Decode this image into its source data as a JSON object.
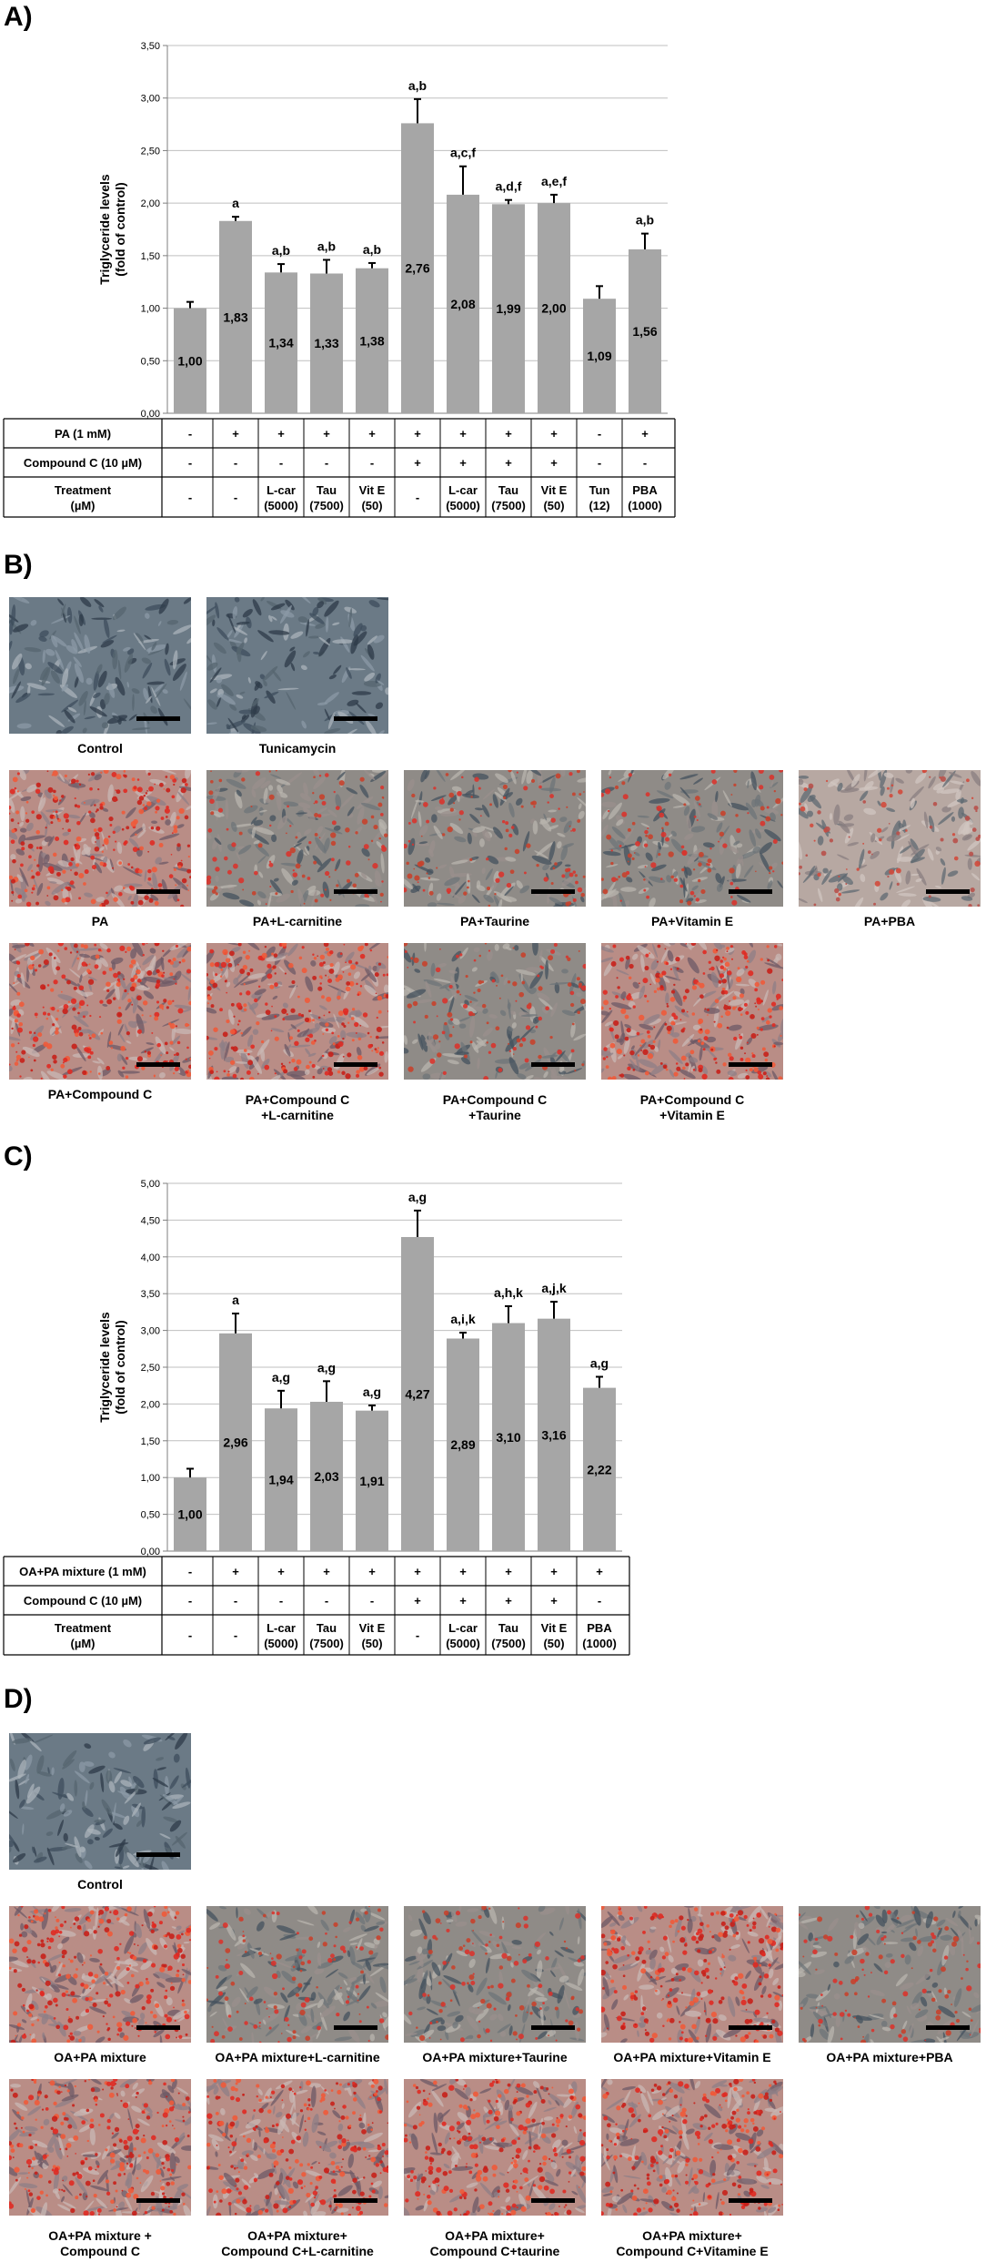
{
  "panels": {
    "A": "A)",
    "B": "B)",
    "C": "C)",
    "D": "D)"
  },
  "chart_data": [
    {
      "type": "bar",
      "panel": "A)",
      "ylabel_lines": [
        "Triglyceride levels",
        "(fold of control)"
      ],
      "ylim": [
        0,
        3.5
      ],
      "y_ticks": [
        "0,00",
        "0,50",
        "1,00",
        "1,50",
        "2,00",
        "2,50",
        "3,00",
        "3,50"
      ],
      "values": [
        1.0,
        1.83,
        1.34,
        1.33,
        1.38,
        2.76,
        2.08,
        1.99,
        2.0,
        1.09,
        1.56
      ],
      "errors": [
        0.06,
        0.04,
        0.08,
        0.13,
        0.05,
        0.23,
        0.27,
        0.04,
        0.08,
        0.12,
        0.15
      ],
      "value_labels": [
        "1,00",
        "1,83",
        "1,34",
        "1,33",
        "1,38",
        "2,76",
        "2,08",
        "1,99",
        "2,00",
        "1,09",
        "1,56"
      ],
      "sig_labels": [
        "",
        "a",
        "a,b",
        "a,b",
        "a,b",
        "a,b",
        "a,c,f",
        "a,d,f",
        "a,e,f",
        "",
        "a,b"
      ],
      "bar_color": "#a6a6a6",
      "table": [
        {
          "label": [
            "PA (1 mM)"
          ],
          "cells": [
            [
              "-"
            ],
            [
              "+"
            ],
            [
              "+"
            ],
            [
              "+"
            ],
            [
              "+"
            ],
            [
              "+"
            ],
            [
              "+"
            ],
            [
              "+"
            ],
            [
              "+"
            ],
            [
              "-"
            ],
            [
              "+"
            ]
          ]
        },
        {
          "label": [
            "Compound C (10 µM)"
          ],
          "cells": [
            [
              "-"
            ],
            [
              "-"
            ],
            [
              "-"
            ],
            [
              "-"
            ],
            [
              "-"
            ],
            [
              "+"
            ],
            [
              "+"
            ],
            [
              "+"
            ],
            [
              "+"
            ],
            [
              "-"
            ],
            [
              "-"
            ]
          ]
        },
        {
          "label": [
            "Treatment",
            "(µM)"
          ],
          "cells": [
            [
              "-"
            ],
            [
              "-"
            ],
            [
              "L-car",
              "(5000)"
            ],
            [
              "Tau",
              "(7500)"
            ],
            [
              "Vit E",
              "(50)"
            ],
            [
              "-"
            ],
            [
              "L-car",
              "(5000)"
            ],
            [
              "Tau",
              "(7500)"
            ],
            [
              "Vit E",
              "(50)"
            ],
            [
              "Tun",
              "(12)"
            ],
            [
              "PBA",
              "(1000)"
            ]
          ]
        }
      ]
    },
    {
      "type": "bar",
      "panel": "C)",
      "ylabel_lines": [
        "Triglyceride levels",
        "(fold of control)"
      ],
      "ylim": [
        0,
        5.0
      ],
      "y_ticks": [
        "0,00",
        "0,50",
        "1,00",
        "1,50",
        "2,00",
        "2,50",
        "3,00",
        "3,50",
        "4,00",
        "4,50",
        "5,00"
      ],
      "values": [
        1.0,
        2.96,
        1.94,
        2.03,
        1.91,
        4.27,
        2.89,
        3.1,
        3.16,
        2.22
      ],
      "errors": [
        0.12,
        0.27,
        0.24,
        0.28,
        0.07,
        0.36,
        0.08,
        0.23,
        0.23,
        0.15
      ],
      "value_labels": [
        "1,00",
        "2,96",
        "1,94",
        "2,03",
        "1,91",
        "4,27",
        "2,89",
        "3,10",
        "3,16",
        "2,22"
      ],
      "sig_labels": [
        "",
        "a",
        "a,g",
        "a,g",
        "a,g",
        "a,g",
        "a,i,k",
        "a,h,k",
        "a,j,k",
        "a,g"
      ],
      "bar_color": "#a6a6a6",
      "table": [
        {
          "label": [
            "OA+PA mixture (1 mM)"
          ],
          "cells": [
            [
              "-"
            ],
            [
              "+"
            ],
            [
              "+"
            ],
            [
              "+"
            ],
            [
              "+"
            ],
            [
              "+"
            ],
            [
              "+"
            ],
            [
              "+"
            ],
            [
              "+"
            ],
            [
              "+"
            ]
          ]
        },
        {
          "label": [
            "Compound C (10 µM)"
          ],
          "cells": [
            [
              "-"
            ],
            [
              "-"
            ],
            [
              "-"
            ],
            [
              "-"
            ],
            [
              "-"
            ],
            [
              "+"
            ],
            [
              "+"
            ],
            [
              "+"
            ],
            [
              "+"
            ],
            [
              "-"
            ]
          ]
        },
        {
          "label": [
            "Treatment",
            "(µM)"
          ],
          "cells": [
            [
              "-"
            ],
            [
              "-"
            ],
            [
              "L-car",
              "(5000)"
            ],
            [
              "Tau",
              "(7500)"
            ],
            [
              "Vit E",
              "(50)"
            ],
            [
              "-"
            ],
            [
              "L-car",
              "(5000)"
            ],
            [
              "Tau",
              "(7500)"
            ],
            [
              "Vit E",
              "(50)"
            ],
            [
              "PBA",
              "(1000)"
            ]
          ]
        }
      ]
    }
  ],
  "micrographs_B": [
    {
      "caption": [
        "Control"
      ],
      "stain": "blue"
    },
    {
      "caption": [
        "Tunicamycin"
      ],
      "stain": "blue"
    },
    {
      "caption": [
        "PA"
      ],
      "stain": "red"
    },
    {
      "caption": [
        "PA+L-carnitine"
      ],
      "stain": "mixed"
    },
    {
      "caption": [
        "PA+Taurine"
      ],
      "stain": "mixed"
    },
    {
      "caption": [
        "PA+Vitamin E"
      ],
      "stain": "mixed"
    },
    {
      "caption": [
        "PA+PBA"
      ],
      "stain": "light"
    },
    {
      "caption": [
        "PA+Compound C"
      ],
      "stain": "red"
    },
    {
      "caption": [
        "PA+Compound C",
        "+L-carnitine"
      ],
      "stain": "red"
    },
    {
      "caption": [
        "PA+Compound C",
        "+Taurine"
      ],
      "stain": "mixed"
    },
    {
      "caption": [
        "PA+Compound C",
        "+Vitamin E"
      ],
      "stain": "red"
    }
  ],
  "micrographs_D": [
    {
      "caption": [
        "Control"
      ],
      "stain": "blue"
    },
    {
      "caption": [
        "OA+PA mixture"
      ],
      "stain": "red"
    },
    {
      "caption": [
        "OA+PA mixture+L-carnitine"
      ],
      "stain": "mixed"
    },
    {
      "caption": [
        "OA+PA mixture+Taurine"
      ],
      "stain": "mixed"
    },
    {
      "caption": [
        "OA+PA mixture+Vitamin E"
      ],
      "stain": "red"
    },
    {
      "caption": [
        "OA+PA mixture+PBA"
      ],
      "stain": "mixed"
    },
    {
      "caption": [
        "OA+PA mixture +",
        "Compound C"
      ],
      "stain": "red"
    },
    {
      "caption": [
        "OA+PA mixture+",
        "Compound C+L-carnitine"
      ],
      "stain": "red"
    },
    {
      "caption": [
        "OA+PA mixture+",
        "Compound C+taurine"
      ],
      "stain": "red"
    },
    {
      "caption": [
        "OA+PA mixture+",
        "Compound C+Vitamine E"
      ],
      "stain": "red"
    }
  ],
  "colors": {
    "bar": "#a6a6a6",
    "grid": "#bfbfbf",
    "axis": "#7f7f7f",
    "red_stain": "#d8342e",
    "blue_cell": "#5a6e80"
  }
}
